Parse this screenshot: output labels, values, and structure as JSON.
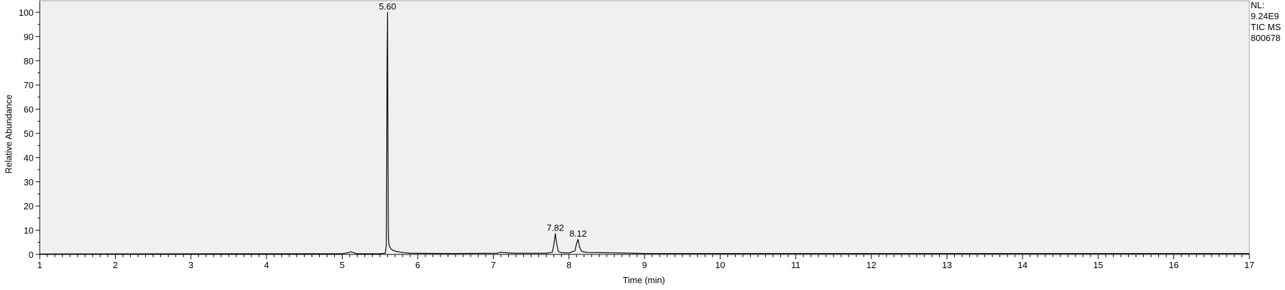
{
  "chart_data": {
    "type": "line",
    "xlabel": "Time (min)",
    "ylabel": "Relative Abundance",
    "xlim": [
      1,
      17
    ],
    "ylim": [
      0,
      100
    ],
    "x_ticks": [
      1,
      2,
      3,
      4,
      5,
      6,
      7,
      8,
      9,
      10,
      11,
      12,
      13,
      14,
      15,
      16,
      17
    ],
    "y_ticks": [
      0,
      10,
      20,
      30,
      40,
      50,
      60,
      70,
      80,
      90,
      100
    ],
    "grid": false,
    "info": [
      "NL:",
      "9.24E9",
      "TIC MS",
      "800678"
    ],
    "peak_labels": [
      {
        "text": "5.60",
        "x": 5.6,
        "y": 100
      },
      {
        "text": "7.82",
        "x": 7.82,
        "y": 8.6
      },
      {
        "text": "8.12",
        "x": 8.12,
        "y": 6.2
      }
    ],
    "series": [
      {
        "x": [
          1.0,
          5.0,
          5.08,
          5.12,
          5.16,
          5.2,
          5.5,
          5.57,
          5.585,
          5.595,
          5.6,
          5.605,
          5.61,
          5.615,
          5.62,
          5.63,
          5.65,
          5.68,
          5.72,
          5.8,
          5.9,
          6.0,
          6.5,
          7.05,
          7.1,
          7.14,
          7.2,
          7.3,
          7.4,
          7.7,
          7.78,
          7.8,
          7.82,
          7.84,
          7.86,
          7.9,
          8.0,
          8.08,
          8.1,
          8.12,
          8.14,
          8.17,
          8.25,
          8.5,
          8.7,
          8.9,
          9.0,
          17.0
        ],
        "y": [
          0.2,
          0.3,
          0.7,
          1.1,
          0.6,
          0.3,
          0.3,
          0.5,
          4,
          82,
          100,
          54,
          12,
          6,
          4,
          3,
          2.2,
          1.6,
          1.2,
          0.8,
          0.5,
          0.45,
          0.4,
          0.5,
          0.9,
          0.8,
          0.6,
          0.5,
          0.5,
          0.5,
          0.9,
          4,
          8.6,
          4,
          1.2,
          0.7,
          0.6,
          1.5,
          4.5,
          6.2,
          3,
          1.2,
          0.8,
          0.7,
          0.6,
          0.45,
          0.4,
          0.4
        ]
      }
    ]
  }
}
